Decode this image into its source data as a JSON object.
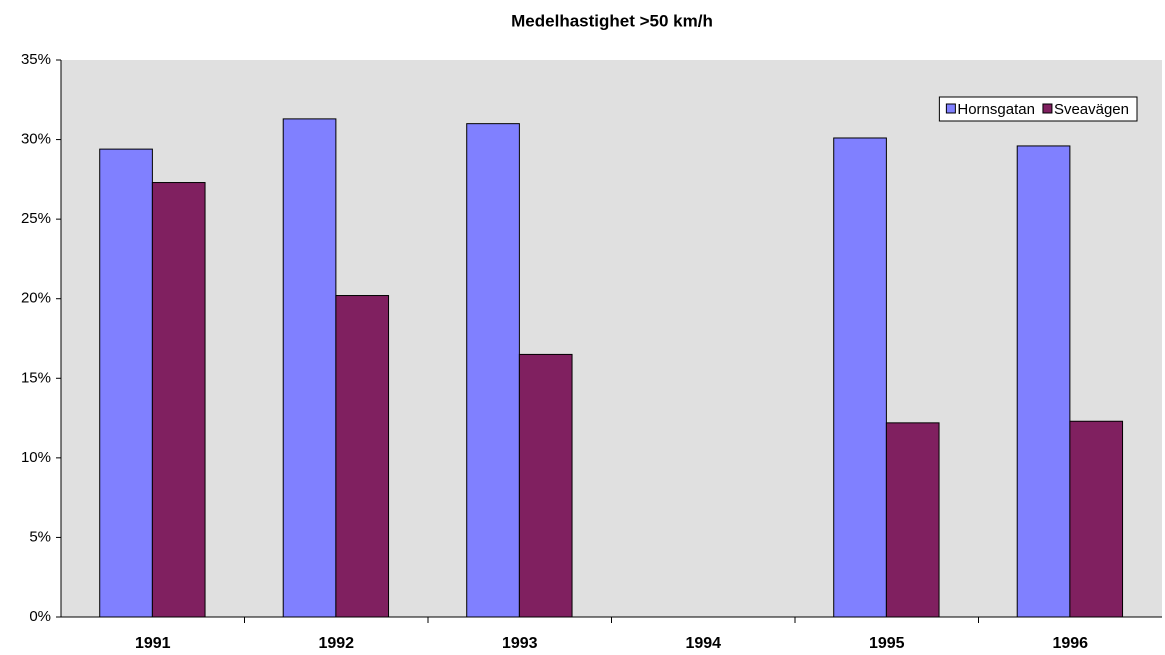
{
  "chart_data": {
    "type": "bar",
    "title": "Medelhastighet >50 km/h",
    "categories": [
      "1991",
      "1992",
      "1993",
      "1994",
      "1995",
      "1996"
    ],
    "series": [
      {
        "name": "Hornsgatan",
        "color": "#8080ff",
        "values": [
          29.4,
          31.3,
          31.0,
          null,
          30.1,
          29.6
        ]
      },
      {
        "name": "Sveavägen",
        "color": "#802060",
        "values": [
          27.3,
          20.2,
          16.5,
          null,
          12.2,
          12.3
        ]
      }
    ],
    "ylim": [
      0,
      35
    ],
    "yticks": [
      {
        "value": 0,
        "label": "0%"
      },
      {
        "value": 5,
        "label": "5%"
      },
      {
        "value": 10,
        "label": "10%"
      },
      {
        "value": 15,
        "label": "15%"
      },
      {
        "value": 20,
        "label": "20%"
      },
      {
        "value": 25,
        "label": "25%"
      },
      {
        "value": 30,
        "label": "30%"
      },
      {
        "value": 35,
        "label": "35%"
      }
    ],
    "grid": false,
    "legend": "top-right"
  }
}
